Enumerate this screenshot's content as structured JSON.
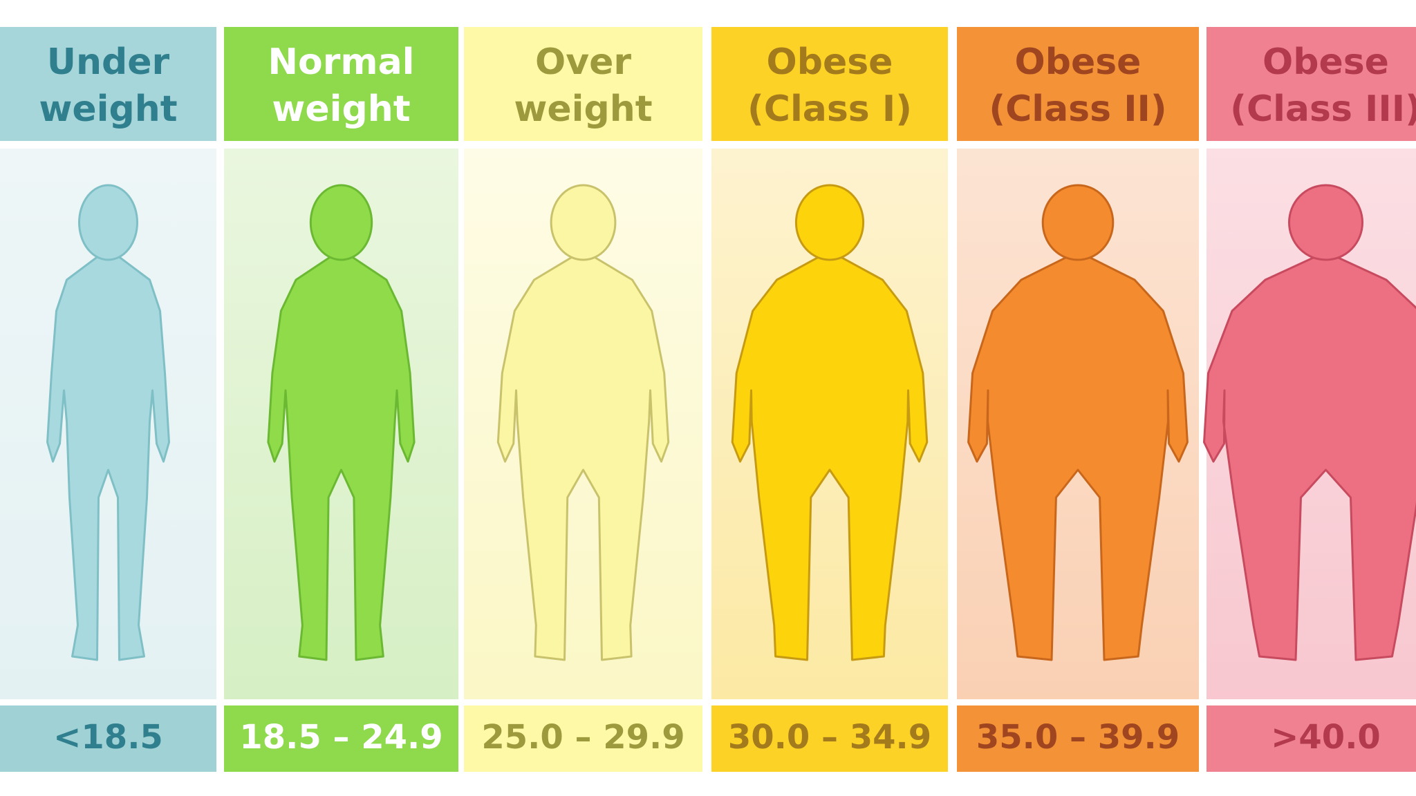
{
  "columns": [
    {
      "title": [
        "Under",
        "weight"
      ],
      "range": "<18.5"
    },
    {
      "title": [
        "Normal",
        "weight"
      ],
      "range": "18.5 – 24.9"
    },
    {
      "title": [
        "Over",
        "weight"
      ],
      "range": "25.0 – 29.9"
    },
    {
      "title": [
        "Obese",
        "(Class I)"
      ],
      "range": "30.0 – 34.9"
    },
    {
      "title": [
        "Obese",
        "(Class II)"
      ],
      "range": "35.0 – 39.9"
    },
    {
      "title": [
        "Obese",
        "(Class III)"
      ],
      "range": ">40.0"
    }
  ]
}
